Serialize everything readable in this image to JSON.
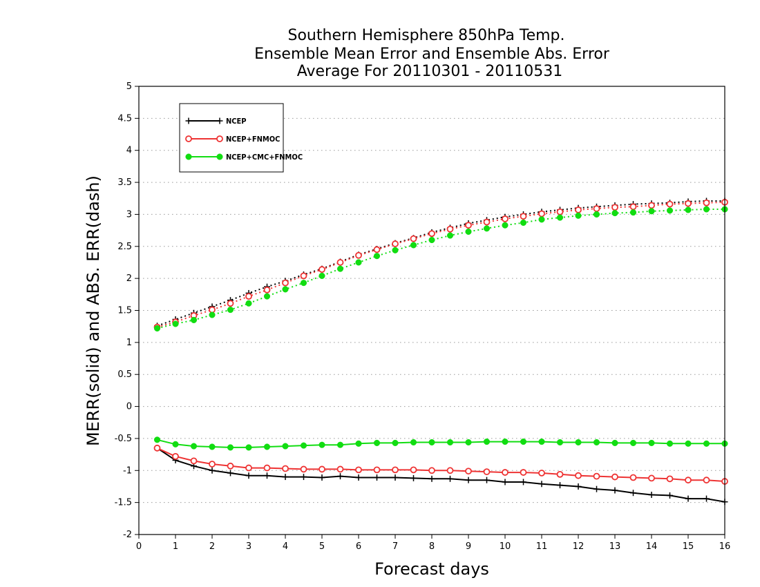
{
  "chart_data": {
    "type": "line",
    "title_lines": [
      "Southern Hemisphere 850hPa Temp.",
      "Ensemble Mean Error and Ensemble Abs. Error",
      "Average For 20110301 - 20110531"
    ],
    "xlabel": "Forecast days",
    "ylabel": "MERR(solid) and ABS. ERR(dash)",
    "xlim": [
      0,
      16
    ],
    "ylim": [
      -2,
      5
    ],
    "xticks": [
      "0",
      "1",
      "2",
      "3",
      "4",
      "5",
      "6",
      "7",
      "8",
      "9",
      "10",
      "11",
      "12",
      "13",
      "14",
      "15",
      "16"
    ],
    "yticks": [
      "5",
      "4.5",
      "4",
      "3.5",
      "3",
      "2.5",
      "2",
      "1.5",
      "1",
      "0.5",
      "0",
      "-0.5",
      "-1",
      "-1.5",
      "-2"
    ],
    "grid": "horizontal dotted",
    "legend_position": "top-left",
    "x": [
      0.5,
      1,
      1.5,
      2,
      2.5,
      3,
      3.5,
      4,
      4.5,
      5,
      5.5,
      6,
      6.5,
      7,
      7.5,
      8,
      8.5,
      9,
      9.5,
      10,
      10.5,
      11,
      11.5,
      12,
      12.5,
      13,
      13.5,
      14,
      14.5,
      15,
      15.5,
      16
    ],
    "series": [
      {
        "name": "NCEP",
        "color": "#000000",
        "marker": "plus",
        "merr": [
          -0.65,
          -0.84,
          -0.93,
          -1.0,
          -1.04,
          -1.08,
          -1.08,
          -1.1,
          -1.1,
          -1.11,
          -1.09,
          -1.11,
          -1.11,
          -1.11,
          -1.12,
          -1.13,
          -1.13,
          -1.15,
          -1.15,
          -1.18,
          -1.18,
          -1.21,
          -1.23,
          -1.25,
          -1.29,
          -1.31,
          -1.35,
          -1.38,
          -1.39,
          -1.44,
          -1.44,
          -1.49
        ],
        "abs_err": [
          1.26,
          1.36,
          1.46,
          1.56,
          1.66,
          1.77,
          1.87,
          1.96,
          2.06,
          2.15,
          2.26,
          2.37,
          2.46,
          2.55,
          2.63,
          2.72,
          2.79,
          2.86,
          2.91,
          2.96,
          3.0,
          3.04,
          3.07,
          3.1,
          3.12,
          3.14,
          3.16,
          3.17,
          3.18,
          3.2,
          3.21,
          3.21
        ]
      },
      {
        "name": "NCEP+FNMOC",
        "color": "#ee3333",
        "marker": "open-circle",
        "merr": [
          -0.65,
          -0.78,
          -0.85,
          -0.9,
          -0.93,
          -0.96,
          -0.96,
          -0.97,
          -0.98,
          -0.98,
          -0.98,
          -0.99,
          -0.99,
          -0.99,
          -0.99,
          -1.0,
          -1.0,
          -1.01,
          -1.02,
          -1.03,
          -1.03,
          -1.04,
          -1.06,
          -1.08,
          -1.09,
          -1.1,
          -1.11,
          -1.12,
          -1.13,
          -1.15,
          -1.15,
          -1.17
        ],
        "abs_err": [
          1.24,
          1.32,
          1.42,
          1.51,
          1.61,
          1.72,
          1.82,
          1.93,
          2.04,
          2.14,
          2.25,
          2.36,
          2.45,
          2.54,
          2.62,
          2.7,
          2.77,
          2.83,
          2.88,
          2.93,
          2.97,
          3.01,
          3.04,
          3.07,
          3.09,
          3.11,
          3.12,
          3.14,
          3.16,
          3.17,
          3.18,
          3.19
        ]
      },
      {
        "name": "NCEP+CMC+FNMOC",
        "color": "#11dd11",
        "marker": "filled-circle",
        "merr": [
          -0.52,
          -0.59,
          -0.62,
          -0.63,
          -0.64,
          -0.64,
          -0.63,
          -0.62,
          -0.61,
          -0.6,
          -0.6,
          -0.58,
          -0.57,
          -0.57,
          -0.56,
          -0.56,
          -0.56,
          -0.56,
          -0.55,
          -0.55,
          -0.55,
          -0.55,
          -0.56,
          -0.56,
          -0.56,
          -0.57,
          -0.57,
          -0.57,
          -0.58,
          -0.58,
          -0.58,
          -0.58
        ],
        "abs_err": [
          1.22,
          1.29,
          1.35,
          1.43,
          1.51,
          1.61,
          1.72,
          1.83,
          1.93,
          2.04,
          2.15,
          2.25,
          2.35,
          2.44,
          2.52,
          2.6,
          2.67,
          2.73,
          2.78,
          2.83,
          2.87,
          2.92,
          2.95,
          2.98,
          3.0,
          3.02,
          3.03,
          3.05,
          3.06,
          3.07,
          3.08,
          3.08
        ]
      }
    ]
  }
}
